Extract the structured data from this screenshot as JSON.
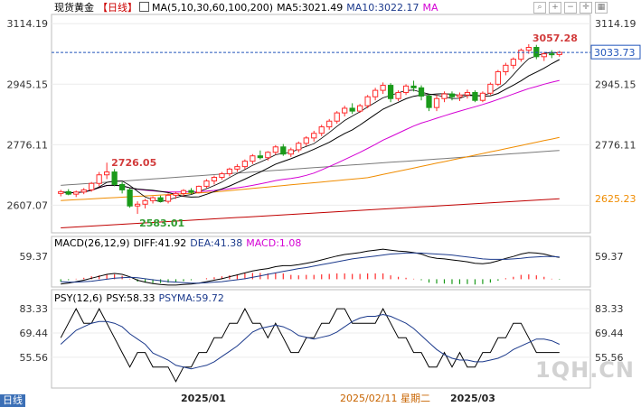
{
  "header": {
    "instrument": "现货黄金",
    "period": "【日线】",
    "ma_label": "MA(5,10,30,60,100,200)",
    "ma5": "MA5:3021.49",
    "ma10": "MA10:3022.17",
    "ma_more": "MA"
  },
  "macd_header": {
    "label": "MACD(26,12,9)",
    "diff": "DIFF:41.92",
    "dea": "DEA:41.38",
    "macd": "MACD:1.08"
  },
  "psy_header": {
    "label": "PSY(12,6)",
    "psy": "PSY:58.33",
    "psyma": "PSYMA:59.72"
  },
  "toolbar": [
    "search-icon",
    "zoom-in-icon",
    "zoom-out-icon",
    "crosshair-icon",
    "grid-icon"
  ],
  "period_tab": "日线",
  "watermark": "1QH.CN",
  "colors": {
    "up": "#ff2b2b",
    "down": "#1a9a1a",
    "ma5": "#000000",
    "ma10": "#000000",
    "ma30": "#d400d4",
    "ma60": "#f08c00",
    "ma100": "#7a7a7a",
    "ma200": "#c00000",
    "psyma": "#1c3a8c",
    "current_price": "#2255bb"
  },
  "chart_data": [
    {
      "type": "candlestick",
      "title": "现货黄金 日线",
      "y_ticks": [
        3114.19,
        2945.15,
        2776.11,
        2607.07
      ],
      "y_right_ticks": [
        3114.19,
        2945.15,
        2776.11
      ],
      "ylim": [
        2530,
        3140
      ],
      "x_tick_labels": [
        "2025/01",
        "2025/02/11 星期二",
        "2025/03"
      ],
      "annotations": {
        "high": "3057.28",
        "low": "2583.01",
        "prior_high": "2726.05",
        "current_price": "3033.73",
        "ma200_value": "2625.23"
      },
      "candles": [
        [
          2640,
          2650,
          2632,
          2645
        ],
        [
          2645,
          2652,
          2635,
          2638
        ],
        [
          2638,
          2648,
          2630,
          2644
        ],
        [
          2644,
          2655,
          2638,
          2650
        ],
        [
          2650,
          2672,
          2645,
          2668
        ],
        [
          2668,
          2700,
          2660,
          2692
        ],
        [
          2692,
          2726,
          2680,
          2700
        ],
        [
          2700,
          2708,
          2660,
          2665
        ],
        [
          2665,
          2672,
          2640,
          2650
        ],
        [
          2650,
          2655,
          2600,
          2605
        ],
        [
          2605,
          2618,
          2583,
          2610
        ],
        [
          2610,
          2625,
          2598,
          2620
        ],
        [
          2620,
          2632,
          2612,
          2628
        ],
        [
          2628,
          2634,
          2615,
          2618
        ],
        [
          2618,
          2640,
          2612,
          2635
        ],
        [
          2635,
          2645,
          2625,
          2640
        ],
        [
          2640,
          2652,
          2632,
          2648
        ],
        [
          2648,
          2655,
          2638,
          2643
        ],
        [
          2643,
          2662,
          2640,
          2660
        ],
        [
          2660,
          2680,
          2655,
          2675
        ],
        [
          2675,
          2690,
          2665,
          2685
        ],
        [
          2685,
          2700,
          2678,
          2695
        ],
        [
          2695,
          2712,
          2688,
          2708
        ],
        [
          2708,
          2722,
          2700,
          2715
        ],
        [
          2715,
          2735,
          2708,
          2730
        ],
        [
          2730,
          2750,
          2722,
          2745
        ],
        [
          2745,
          2760,
          2735,
          2740
        ],
        [
          2740,
          2758,
          2732,
          2755
        ],
        [
          2755,
          2775,
          2748,
          2770
        ],
        [
          2770,
          2778,
          2745,
          2750
        ],
        [
          2750,
          2768,
          2742,
          2762
        ],
        [
          2762,
          2785,
          2755,
          2780
        ],
        [
          2780,
          2800,
          2772,
          2795
        ],
        [
          2795,
          2815,
          2785,
          2808
        ],
        [
          2808,
          2832,
          2800,
          2826
        ],
        [
          2826,
          2848,
          2818,
          2842
        ],
        [
          2842,
          2870,
          2835,
          2865
        ],
        [
          2865,
          2885,
          2855,
          2878
        ],
        [
          2878,
          2892,
          2862,
          2870
        ],
        [
          2870,
          2890,
          2865,
          2885
        ],
        [
          2885,
          2915,
          2878,
          2910
        ],
        [
          2910,
          2935,
          2900,
          2928
        ],
        [
          2928,
          2950,
          2918,
          2942
        ],
        [
          2942,
          2948,
          2895,
          2905
        ],
        [
          2905,
          2928,
          2898,
          2922
        ],
        [
          2922,
          2945,
          2915,
          2940
        ],
        [
          2940,
          2955,
          2925,
          2935
        ],
        [
          2935,
          2942,
          2900,
          2912
        ],
        [
          2912,
          2918,
          2870,
          2880
        ],
        [
          2880,
          2915,
          2870,
          2905
        ],
        [
          2905,
          2925,
          2895,
          2918
        ],
        [
          2918,
          2925,
          2900,
          2910
        ],
        [
          2910,
          2922,
          2898,
          2915
        ],
        [
          2915,
          2930,
          2905,
          2922
        ],
        [
          2922,
          2928,
          2895,
          2900
        ],
        [
          2900,
          2925,
          2895,
          2920
        ],
        [
          2920,
          2950,
          2915,
          2945
        ],
        [
          2945,
          2985,
          2940,
          2980
        ],
        [
          2980,
          3005,
          2970,
          2998
        ],
        [
          2998,
          3020,
          2988,
          3015
        ],
        [
          3015,
          3045,
          3008,
          3040
        ],
        [
          3040,
          3057,
          3030,
          3048
        ],
        [
          3048,
          3055,
          3015,
          3022
        ],
        [
          3022,
          3035,
          3010,
          3030
        ],
        [
          3030,
          3040,
          3018,
          3028
        ],
        [
          3028,
          3038,
          3022,
          3034
        ]
      ]
    },
    {
      "type": "macd",
      "title": "MACD(26,12,9)",
      "y_ticks": [
        59.37
      ],
      "diff": [
        -10,
        -8,
        -5,
        -2,
        2,
        6,
        10,
        12,
        10,
        5,
        -2,
        -6,
        -9,
        -11,
        -12,
        -12,
        -11,
        -10,
        -8,
        -5,
        -2,
        1,
        5,
        9,
        13,
        17,
        20,
        22,
        26,
        28,
        28,
        30,
        33,
        36,
        40,
        44,
        48,
        51,
        53,
        55,
        58,
        60,
        62,
        60,
        58,
        57,
        55,
        52,
        46,
        43,
        42,
        40,
        38,
        36,
        33,
        32,
        34,
        38,
        43,
        47,
        52,
        55,
        54,
        52,
        48,
        45
      ],
      "dea": [
        -5,
        -6,
        -6,
        -5,
        -4,
        -2,
        0,
        2,
        3,
        4,
        3,
        1,
        -1,
        -3,
        -5,
        -6,
        -7,
        -8,
        -8,
        -7,
        -6,
        -5,
        -3,
        -1,
        1,
        4,
        7,
        10,
        13,
        16,
        19,
        22,
        24,
        27,
        30,
        33,
        36,
        39,
        42,
        44,
        46,
        48,
        50,
        52,
        53,
        54,
        54,
        54,
        53,
        52,
        51,
        50,
        48,
        46,
        44,
        42,
        41,
        41,
        41,
        42,
        43,
        45,
        46,
        47,
        47,
        46
      ],
      "macd": [
        -5,
        -2,
        1,
        3,
        6,
        8,
        10,
        10,
        7,
        1,
        -5,
        -7,
        -8,
        -8,
        -7,
        -6,
        -4,
        -2,
        0,
        2,
        4,
        6,
        8,
        10,
        12,
        13,
        13,
        12,
        13,
        12,
        9,
        8,
        9,
        9,
        10,
        11,
        12,
        12,
        11,
        11,
        12,
        12,
        12,
        8,
        5,
        3,
        1,
        -2,
        -7,
        -9,
        -9,
        -10,
        -10,
        -10,
        -11,
        -10,
        -7,
        -3,
        2,
        5,
        9,
        10,
        8,
        5,
        1,
        -1
      ]
    },
    {
      "type": "psy",
      "title": "PSY(12,6)",
      "y_ticks": [
        83.33,
        69.44,
        55.56
      ],
      "ylim": [
        38,
        88
      ],
      "psy": [
        66.7,
        75,
        83.3,
        75,
        75,
        83.3,
        75,
        66.7,
        58.3,
        50,
        58.3,
        58.3,
        50,
        50,
        50,
        41.7,
        50,
        50,
        58.3,
        58.3,
        66.7,
        66.7,
        75,
        75,
        83.3,
        75,
        75,
        66.7,
        75,
        66.7,
        58.3,
        58.3,
        66.7,
        66.7,
        75,
        75,
        83.3,
        83.3,
        75,
        75,
        75,
        75,
        83.3,
        75,
        66.7,
        66.7,
        58.3,
        58.3,
        50,
        50,
        58.3,
        50,
        58.3,
        50,
        50,
        58.3,
        58.3,
        66.7,
        66.7,
        75,
        75,
        66.7,
        58.3,
        58.3,
        58.3,
        58.3
      ],
      "psyma": [
        63,
        67,
        71,
        73,
        75,
        76,
        76,
        75,
        73,
        69,
        66,
        63,
        58,
        56,
        54,
        51,
        50,
        49,
        50,
        51,
        53,
        56,
        59,
        62,
        66,
        70,
        72,
        73,
        74,
        73,
        71,
        68,
        67,
        66,
        67,
        68,
        70,
        73,
        76,
        78,
        79,
        79,
        80,
        79,
        77,
        75,
        72,
        68,
        64,
        60,
        57,
        55,
        54,
        54,
        53,
        53,
        54,
        55,
        57,
        60,
        62,
        64,
        66,
        66,
        65,
        63
      ]
    }
  ]
}
